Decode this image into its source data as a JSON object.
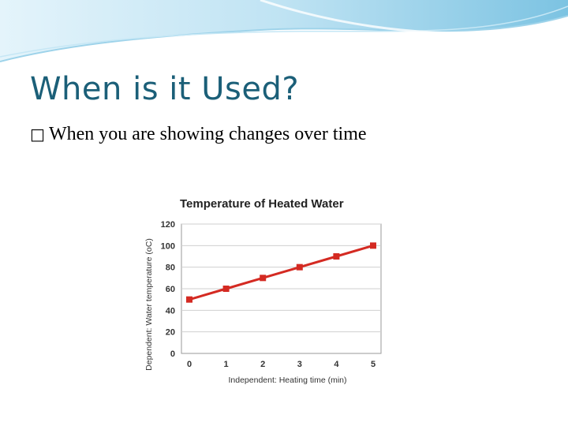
{
  "slide": {
    "title": "When is it Used?",
    "bullet_icon": "square-bullet-icon",
    "bullet_text": "When you are showing changes over time"
  },
  "theme": {
    "title_color": "#1b5f78",
    "wave_light": "#cfeaf6",
    "wave_mid": "#8fcbe6",
    "line_color": "#d42a22",
    "grid_color": "#cfcfcf"
  },
  "chart_data": {
    "type": "line",
    "title": "Temperature of Heated Water",
    "xlabel": "Independent:  Heating time (min)",
    "ylabel": "Dependent:  Water temperature (oC)",
    "x": [
      0,
      1,
      2,
      3,
      4,
      5
    ],
    "series": [
      {
        "values": [
          50,
          60,
          70,
          80,
          90,
          100
        ]
      }
    ],
    "xlim": [
      0,
      5
    ],
    "ylim": [
      0,
      120
    ],
    "yticks": [
      0,
      20,
      40,
      60,
      80,
      100,
      120
    ],
    "xticks": [
      0,
      1,
      2,
      3,
      4,
      5
    ],
    "grid": true,
    "legend": "none"
  }
}
